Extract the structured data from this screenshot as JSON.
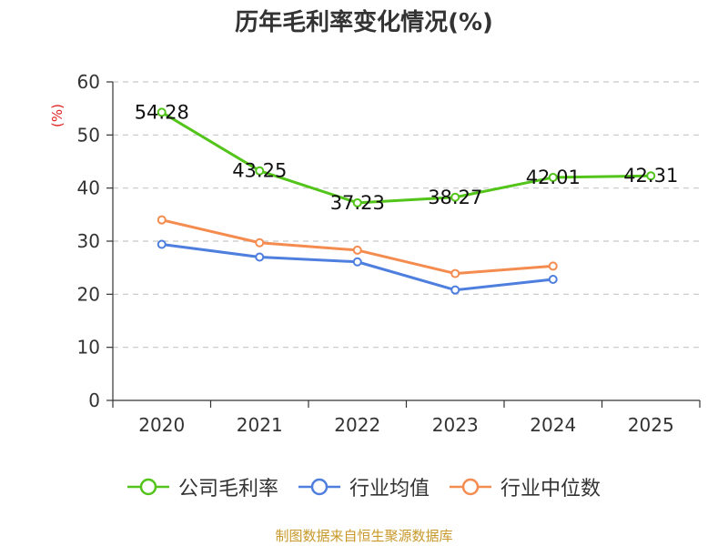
{
  "chart_data": {
    "type": "line",
    "title": "历年毛利率变化情况(%)",
    "ylabel": "(%)",
    "xlabel": "",
    "categories": [
      "2020",
      "2021",
      "2022",
      "2023",
      "2024",
      "2025"
    ],
    "ylim": [
      0,
      60
    ],
    "yticks": [
      0,
      10,
      20,
      30,
      40,
      50,
      60
    ],
    "grid": true,
    "legend_position": "bottom",
    "series": [
      {
        "name": "公司毛利率",
        "color": "#52c41a",
        "values": [
          54.28,
          43.25,
          37.23,
          38.27,
          42.01,
          42.31
        ],
        "data_labels": [
          "54.28",
          "43.25",
          "37.23",
          "38.27",
          "42.01",
          "42.31"
        ]
      },
      {
        "name": "行业均值",
        "color": "#4e7fde",
        "values": [
          29.4,
          27.0,
          26.1,
          20.8,
          22.8,
          null
        ]
      },
      {
        "name": "行业中位数",
        "color": "#f58c4f",
        "values": [
          34.0,
          29.7,
          28.3,
          23.9,
          25.3,
          null
        ]
      }
    ]
  },
  "source_note": "制图数据来自恒生聚源数据库"
}
